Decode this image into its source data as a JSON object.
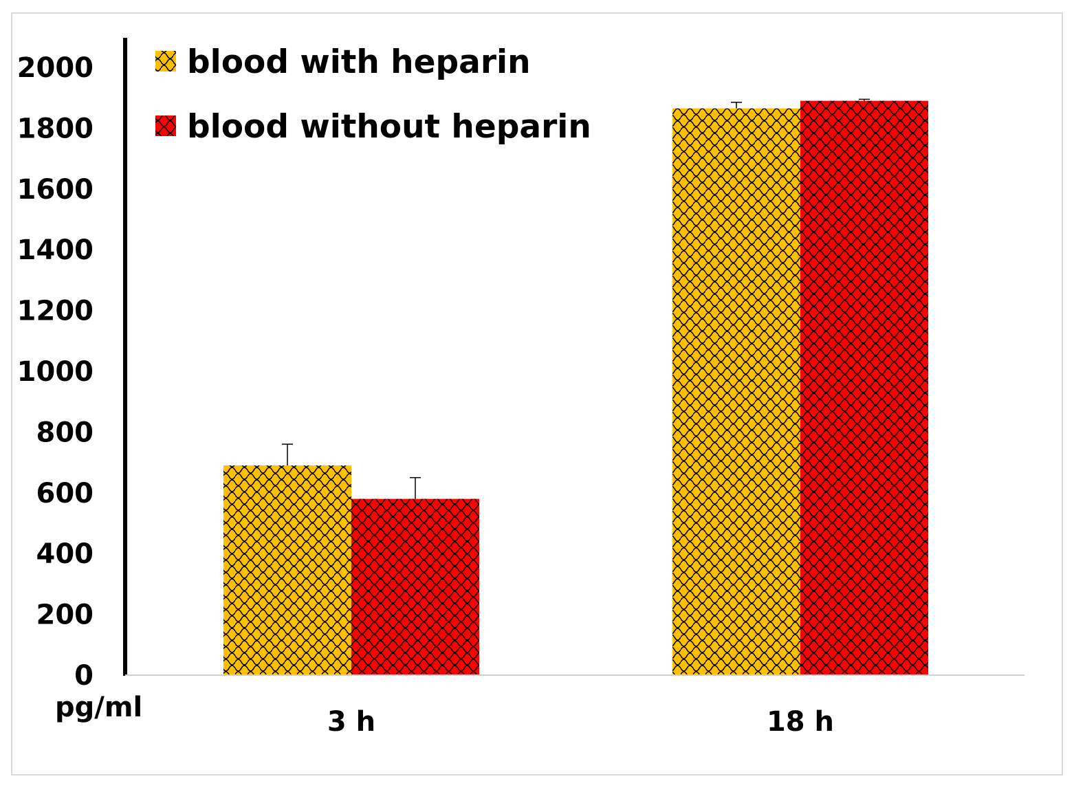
{
  "chart_data": {
    "type": "bar",
    "categories": [
      "3 h",
      "18 h"
    ],
    "series": [
      {
        "name": "blood with heparin",
        "values": [
          690,
          1865
        ],
        "errors": [
          70,
          20
        ],
        "color": "#FFC000"
      },
      {
        "name": "blood without heparin",
        "values": [
          580,
          1890
        ],
        "errors": [
          70,
          5
        ],
        "color": "#FF0000"
      }
    ],
    "ylabel": "pg/ml",
    "xlabel": "",
    "ylim": [
      0,
      2000
    ],
    "yticks": [
      "0",
      "200",
      "400",
      "600",
      "800",
      "1000",
      "1200",
      "1400",
      "1600",
      "1800",
      "2000"
    ],
    "legend": "top-left",
    "grid": false,
    "pattern": "scale-hatch",
    "pattern_color": "#000000"
  }
}
